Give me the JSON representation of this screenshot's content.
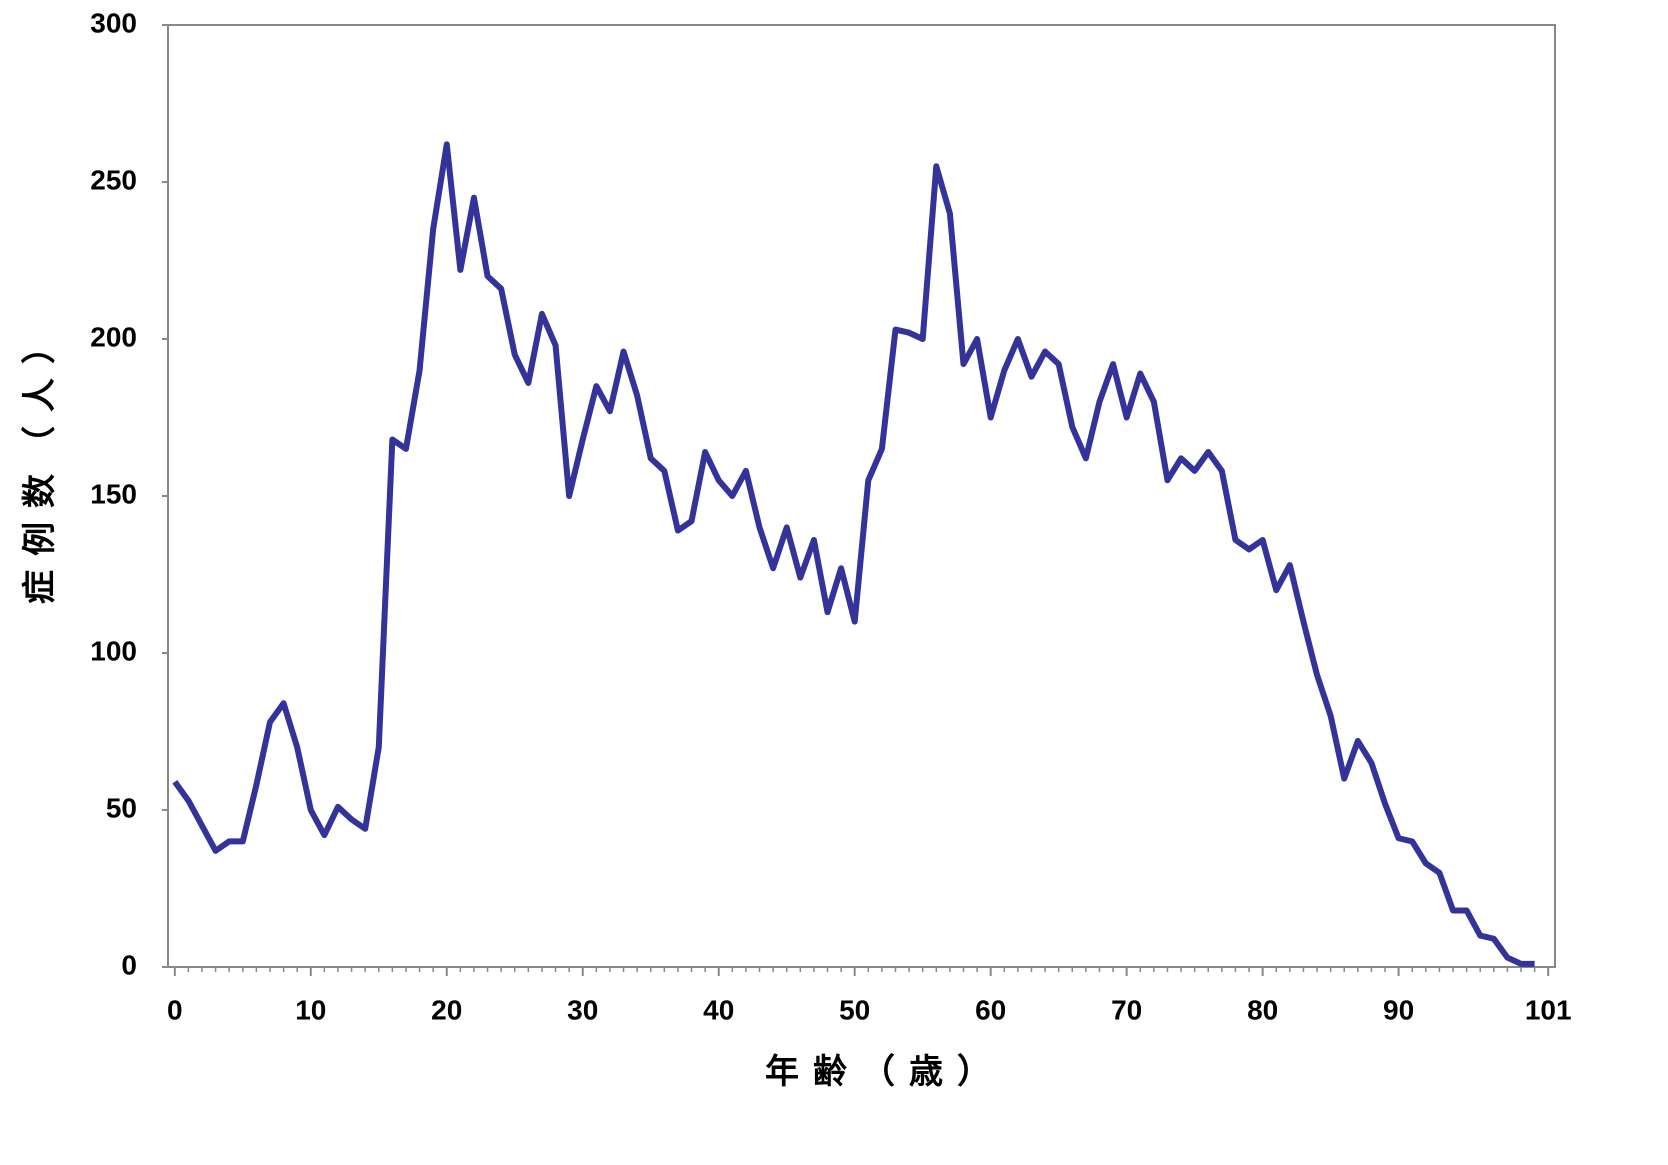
{
  "chart_data": {
    "type": "line",
    "xlabel": "年齢（歳）",
    "ylabel": "症例数（人）",
    "x": [
      0,
      1,
      2,
      3,
      4,
      5,
      6,
      7,
      8,
      9,
      10,
      11,
      12,
      13,
      14,
      15,
      16,
      17,
      18,
      19,
      20,
      21,
      22,
      23,
      24,
      25,
      26,
      27,
      28,
      29,
      30,
      31,
      32,
      33,
      34,
      35,
      36,
      37,
      38,
      39,
      40,
      41,
      42,
      43,
      44,
      45,
      46,
      47,
      48,
      49,
      50,
      51,
      52,
      53,
      54,
      55,
      56,
      57,
      58,
      59,
      60,
      61,
      62,
      63,
      64,
      65,
      66,
      67,
      68,
      69,
      70,
      71,
      72,
      73,
      74,
      75,
      76,
      77,
      78,
      79,
      80,
      81,
      82,
      83,
      84,
      85,
      86,
      87,
      88,
      89,
      90,
      91,
      92,
      93,
      94,
      95,
      96,
      97,
      98,
      99,
      100
    ],
    "series": [
      {
        "color": "#333399",
        "values": [
          59,
          53,
          45,
          37,
          40,
          40,
          58,
          78,
          84,
          70,
          50,
          42,
          51,
          47,
          44,
          70,
          168,
          165,
          190,
          235,
          262,
          222,
          245,
          220,
          216,
          195,
          186,
          208,
          198,
          150,
          168,
          185,
          177,
          196,
          182,
          162,
          158,
          139,
          142,
          164,
          155,
          150,
          158,
          140,
          127,
          140,
          124,
          136,
          113,
          127,
          110,
          155,
          165,
          203,
          202,
          200,
          255,
          240,
          192,
          200,
          175,
          190,
          200,
          188,
          196,
          192,
          172,
          162,
          180,
          192,
          175,
          189,
          180,
          155,
          162,
          158,
          164,
          158,
          136,
          133,
          136,
          120,
          128,
          110,
          93,
          80,
          60,
          72,
          65,
          52,
          41,
          40,
          33,
          30,
          18,
          18,
          10,
          9,
          3,
          1,
          1
        ]
      }
    ],
    "xlim": [
      -0.5,
      101.5
    ],
    "xticks": [
      0,
      10,
      20,
      30,
      40,
      50,
      60,
      70,
      80,
      90,
      101
    ],
    "ylim": [
      0,
      300
    ],
    "yticks": [
      0,
      50,
      100,
      150,
      200,
      250,
      300
    ],
    "grid": false
  }
}
